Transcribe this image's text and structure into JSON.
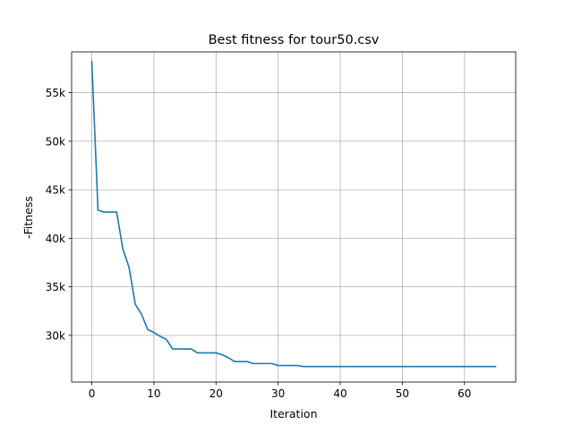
{
  "chart_data": {
    "type": "line",
    "title": "Best fitness for tour50.csv",
    "xlabel": "Iteration",
    "ylabel": "-Fitness",
    "xlim": [
      -3.25,
      68.25
    ],
    "ylim": [
      25200,
      59200
    ],
    "xticks": [
      0,
      10,
      20,
      30,
      40,
      50,
      60
    ],
    "xtick_labels": [
      "0",
      "10",
      "20",
      "30",
      "40",
      "50",
      "60"
    ],
    "yticks": [
      30000,
      35000,
      40000,
      45000,
      50000,
      55000
    ],
    "ytick_labels": [
      "30k",
      "35k",
      "40k",
      "45k",
      "50k",
      "55k"
    ],
    "grid": true,
    "legend": null,
    "series": [
      {
        "color": "#1f77b4",
        "x": [
          0,
          1,
          2,
          3,
          4,
          5,
          6,
          7,
          8,
          9,
          10,
          11,
          12,
          13,
          14,
          15,
          16,
          17,
          18,
          19,
          20,
          21,
          22,
          23,
          24,
          25,
          26,
          27,
          28,
          29,
          30,
          31,
          32,
          33,
          34,
          35,
          36,
          37,
          38,
          39,
          40,
          41,
          42,
          43,
          44,
          45,
          46,
          47,
          48,
          49,
          50,
          51,
          52,
          53,
          54,
          55,
          56,
          57,
          58,
          59,
          60,
          61,
          62,
          63,
          64,
          65
        ],
        "y": [
          58200,
          42900,
          42700,
          42700,
          42700,
          38900,
          37000,
          33200,
          32200,
          30600,
          30300,
          29900,
          29600,
          28600,
          28600,
          28600,
          28600,
          28200,
          28200,
          28200,
          28200,
          28000,
          27700,
          27300,
          27300,
          27300,
          27100,
          27100,
          27100,
          27100,
          26900,
          26900,
          26900,
          26900,
          26800,
          26800,
          26800,
          26800,
          26800,
          26800,
          26800,
          26800,
          26800,
          26800,
          26800,
          26800,
          26800,
          26800,
          26800,
          26800,
          26800,
          26800,
          26800,
          26800,
          26800,
          26800,
          26800,
          26800,
          26800,
          26800,
          26800,
          26800,
          26800,
          26800,
          26800,
          26800
        ]
      }
    ]
  }
}
